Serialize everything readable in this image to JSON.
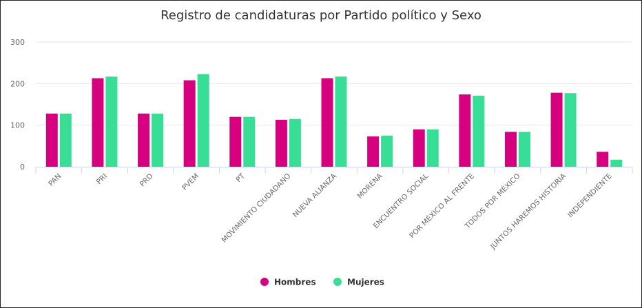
{
  "chart_data": {
    "type": "bar",
    "title": "Registro de candidaturas por Partido político y Sexo",
    "xlabel": "",
    "ylabel": "",
    "ylim": [
      0,
      300
    ],
    "yticks": [
      0,
      100,
      200,
      300
    ],
    "grid": true,
    "legend_position": "bottom",
    "categories": [
      "PAN",
      "PRI",
      "PRD",
      "PVEM",
      "PT",
      "MOVIMIENTO CIUDADANO",
      "NUEVA ALIANZA",
      "MORENA",
      "ENCUENTRO SOCIAL",
      "POR MÉXICO AL FRENTE",
      "TODOS POR MÉXICO",
      "JUNTOS HAREMOS HISTORIA",
      "INDEPENDIENTE"
    ],
    "series": [
      {
        "name": "Hombres",
        "color": "#d6007f",
        "values": [
          128,
          213,
          128,
          208,
          120,
          113,
          213,
          73,
          90,
          174,
          84,
          178,
          36
        ]
      },
      {
        "name": "Mujeres",
        "color": "#38dd96",
        "values": [
          128,
          217,
          128,
          223,
          120,
          115,
          217,
          75,
          90,
          171,
          84,
          177,
          17
        ]
      }
    ]
  }
}
